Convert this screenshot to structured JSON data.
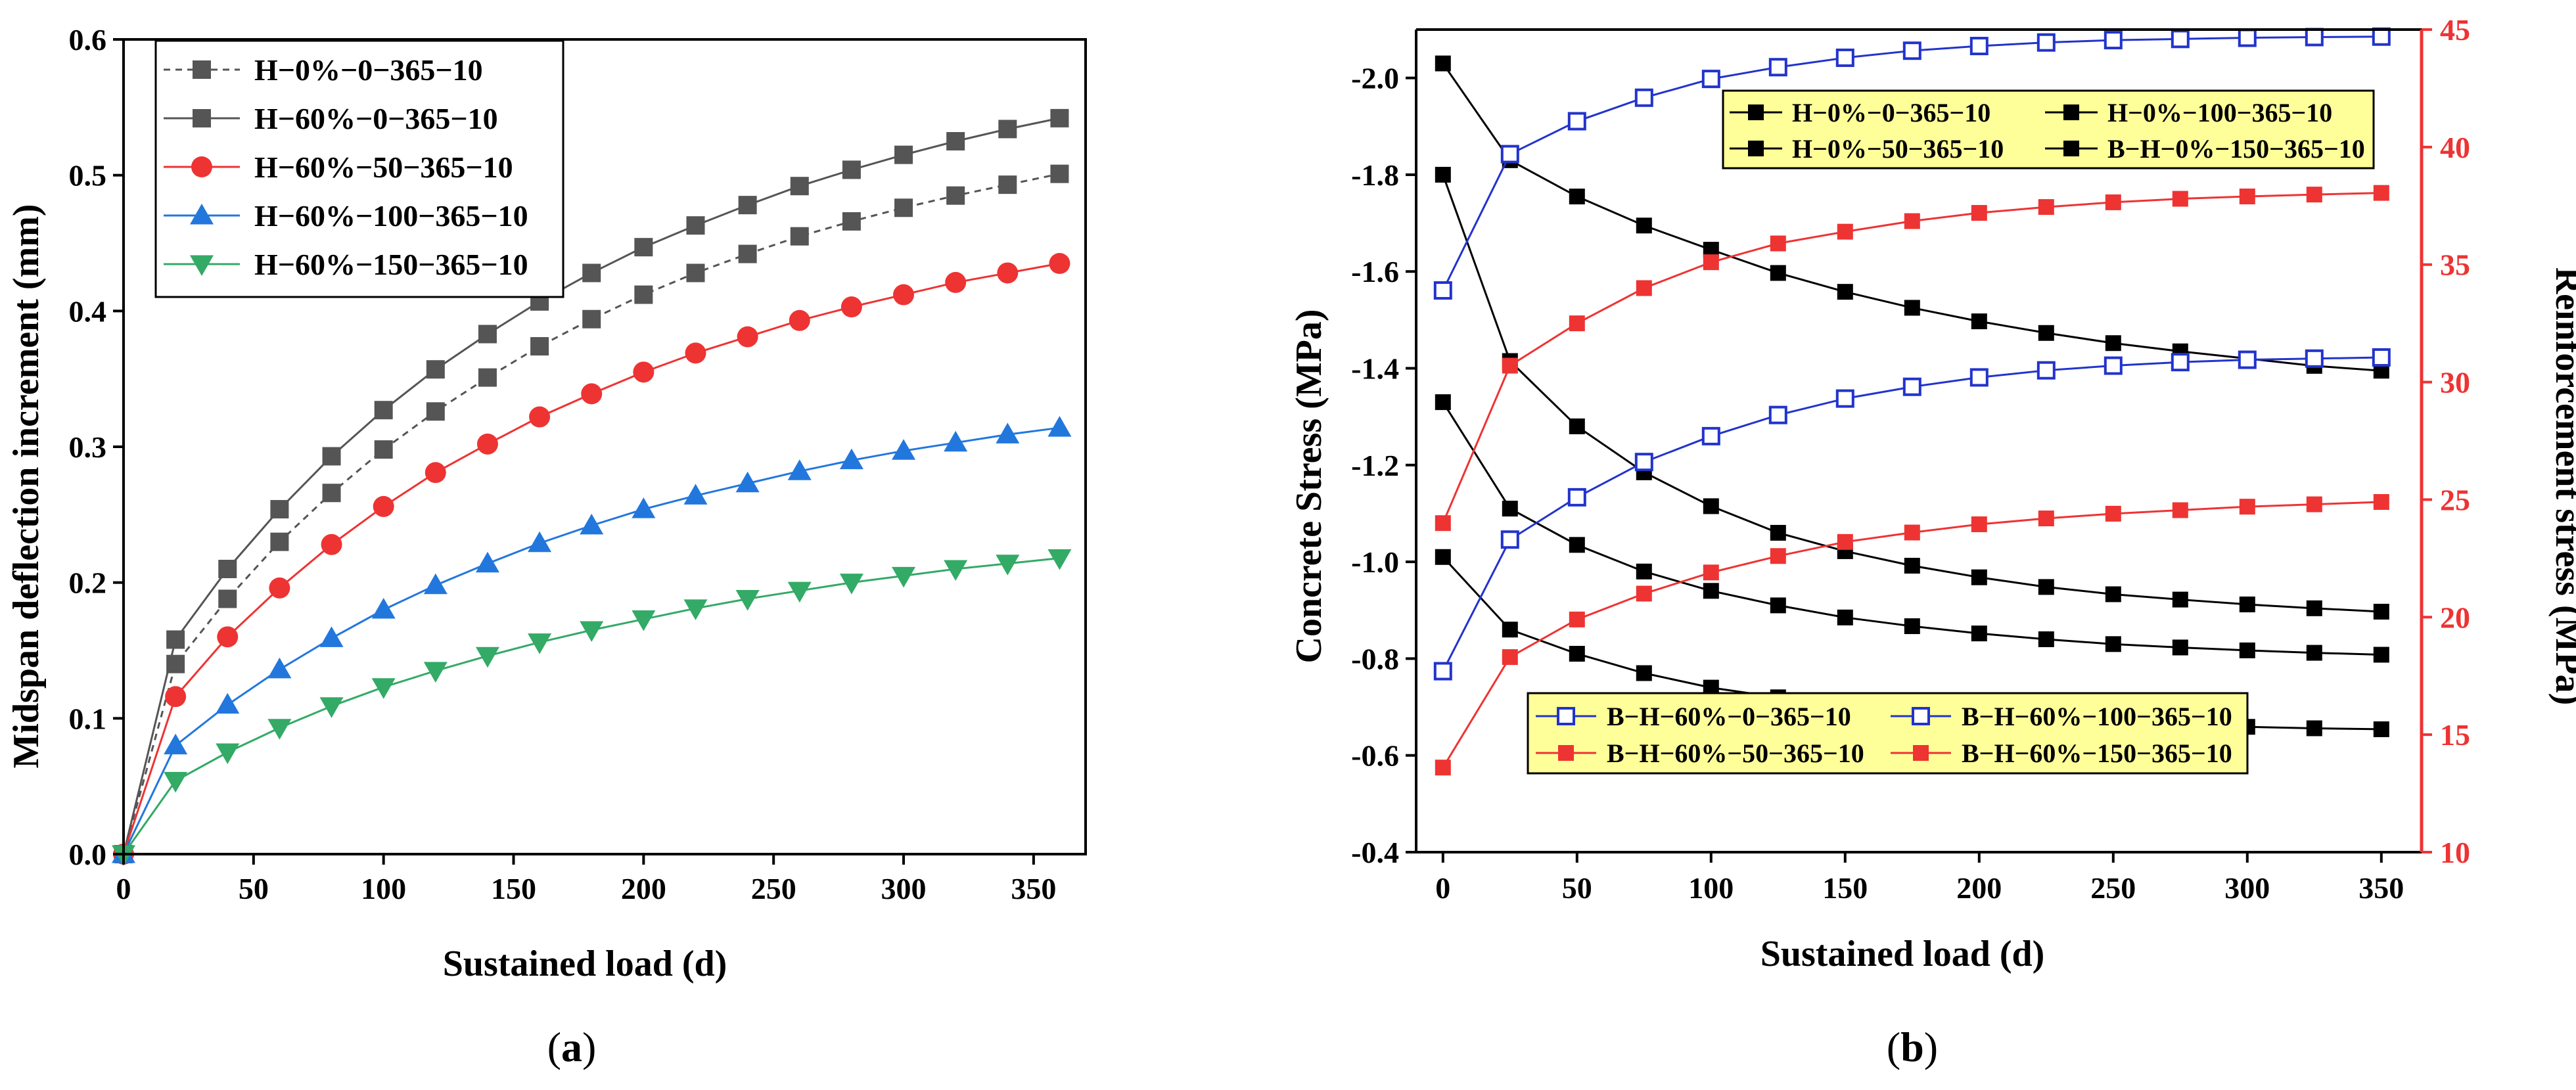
{
  "chart_data": [
    {
      "type": "line",
      "panel": "(a)",
      "panel_label_open": "(",
      "panel_label_letter": "a",
      "panel_label_close": ")",
      "xlabel": "Sustained load  (d)",
      "ylabel": "Midspan deflection increment  (mm)",
      "xlim": [
        0,
        370
      ],
      "ylim": [
        0,
        0.6
      ],
      "xticks": [
        0,
        50,
        100,
        150,
        200,
        250,
        300,
        350
      ],
      "yticks": [
        0.0,
        0.1,
        0.2,
        0.3,
        0.4,
        0.5,
        0.6
      ],
      "legend_position": "top-left",
      "series": [
        {
          "name": "H−0%−0−365−10",
          "color": "#555555",
          "marker": "square",
          "dashed": true,
          "x": [
            0,
            20,
            40,
            60,
            80,
            100,
            120,
            140,
            160,
            180,
            200,
            220,
            240,
            260,
            280,
            300,
            320,
            340,
            360
          ],
          "y": [
            0,
            0.14,
            0.188,
            0.23,
            0.266,
            0.298,
            0.326,
            0.351,
            0.374,
            0.394,
            0.412,
            0.428,
            0.442,
            0.455,
            0.466,
            0.476,
            0.485,
            0.493,
            0.501
          ]
        },
        {
          "name": "H−60%−0−365−10",
          "color": "#555555",
          "marker": "square",
          "dashed": false,
          "x": [
            0,
            20,
            40,
            60,
            80,
            100,
            120,
            140,
            160,
            180,
            200,
            220,
            240,
            260,
            280,
            300,
            320,
            340,
            360
          ],
          "y": [
            0,
            0.158,
            0.21,
            0.254,
            0.293,
            0.327,
            0.357,
            0.383,
            0.407,
            0.428,
            0.447,
            0.463,
            0.478,
            0.492,
            0.504,
            0.515,
            0.525,
            0.534,
            0.542
          ]
        },
        {
          "name": "H−60%−50−365−10",
          "color": "#ee3333",
          "marker": "circle",
          "dashed": false,
          "x": [
            0,
            20,
            40,
            60,
            80,
            100,
            120,
            140,
            160,
            180,
            200,
            220,
            240,
            260,
            280,
            300,
            320,
            340,
            360
          ],
          "y": [
            0,
            0.116,
            0.16,
            0.196,
            0.228,
            0.256,
            0.281,
            0.302,
            0.322,
            0.339,
            0.355,
            0.369,
            0.381,
            0.393,
            0.403,
            0.412,
            0.421,
            0.428,
            0.435
          ]
        },
        {
          "name": "H−60%−100−365−10",
          "color": "#2277dd",
          "marker": "triangle-up",
          "dashed": false,
          "x": [
            0,
            20,
            40,
            60,
            80,
            100,
            120,
            140,
            160,
            180,
            200,
            220,
            240,
            260,
            280,
            300,
            320,
            340,
            360
          ],
          "y": [
            0,
            0.08,
            0.11,
            0.136,
            0.159,
            0.18,
            0.198,
            0.214,
            0.229,
            0.242,
            0.254,
            0.264,
            0.273,
            0.282,
            0.29,
            0.297,
            0.303,
            0.309,
            0.314
          ]
        },
        {
          "name": "H−60%−150−365−10",
          "color": "#33aa66",
          "marker": "triangle-down",
          "dashed": false,
          "x": [
            0,
            20,
            40,
            60,
            80,
            100,
            120,
            140,
            160,
            180,
            200,
            220,
            240,
            260,
            280,
            300,
            320,
            340,
            360
          ],
          "y": [
            0,
            0.054,
            0.075,
            0.093,
            0.109,
            0.123,
            0.135,
            0.146,
            0.156,
            0.165,
            0.173,
            0.181,
            0.188,
            0.194,
            0.2,
            0.205,
            0.21,
            0.214,
            0.218
          ]
        }
      ]
    },
    {
      "type": "line",
      "panel": "(b)",
      "panel_label_open": "(",
      "panel_label_letter": "b",
      "panel_label_close": ")",
      "xlabel": "Sustained load  (d)",
      "ylabel": "Concrete Stress  (MPa)",
      "y2label": "Reinforcement stress  (MPa)",
      "xlim": [
        -10,
        365
      ],
      "ylim": [
        -0.4,
        -2.1
      ],
      "y2lim": [
        10,
        45
      ],
      "xticks": [
        0,
        50,
        100,
        150,
        200,
        250,
        300,
        350
      ],
      "yticks": [
        -0.4,
        -0.6,
        -0.8,
        -1.0,
        -1.2,
        -1.4,
        -1.6,
        -1.8,
        -2.0
      ],
      "ytick_labels": [
        "-0.4",
        "-0.6",
        "-0.8",
        "-1.0",
        "-1.2",
        "-1.4",
        "-1.6",
        "-1.8",
        "-2.0"
      ],
      "y2ticks": [
        10,
        15,
        20,
        25,
        30,
        35,
        40,
        45
      ],
      "colors": {
        "axis2": "#ee3333"
      },
      "legend_top": [
        "H−0%−0−365−10",
        "H−0%−100−365−10",
        "H−0%−50−365−10",
        "B−H−0%−150−365−10"
      ],
      "legend_bottom": [
        "B−H−60%−0−365−10",
        "B−H−60%−100−365−10",
        "B−H−60%−50−365−10",
        "B−H−60%−150−365−10"
      ],
      "series": [
        {
          "name": "H−0%−0−365−10",
          "axis": "left",
          "color": "#000000",
          "marker": "square",
          "x": [
            0,
            25,
            50,
            75,
            100,
            125,
            150,
            175,
            200,
            225,
            250,
            275,
            300,
            325,
            350
          ],
          "y": [
            -2.03,
            -1.83,
            -1.755,
            -1.695,
            -1.645,
            -1.597,
            -1.558,
            -1.525,
            -1.497,
            -1.473,
            -1.452,
            -1.435,
            -1.42,
            -1.405,
            -1.395
          ]
        },
        {
          "name": "H−0%−50−365−10",
          "axis": "left",
          "color": "#000000",
          "marker": "square",
          "x": [
            0,
            25,
            50,
            75,
            100,
            125,
            150,
            175,
            200,
            225,
            250,
            275,
            300,
            325,
            350
          ],
          "y": [
            -1.8,
            -1.415,
            -1.28,
            -1.185,
            -1.115,
            -1.06,
            -1.022,
            -0.992,
            -0.968,
            -0.948,
            -0.933,
            -0.922,
            -0.912,
            -0.904,
            -0.897
          ]
        },
        {
          "name": "H−0%−100−365−10",
          "axis": "left",
          "color": "#000000",
          "marker": "square",
          "x": [
            0,
            25,
            50,
            75,
            100,
            125,
            150,
            175,
            200,
            225,
            250,
            275,
            300,
            325,
            350
          ],
          "y": [
            -1.33,
            -1.11,
            -1.035,
            -0.98,
            -0.94,
            -0.91,
            -0.885,
            -0.867,
            -0.852,
            -0.84,
            -0.83,
            -0.823,
            -0.817,
            -0.812,
            -0.808
          ]
        },
        {
          "name": "B−H−0%−150−365−10",
          "axis": "left",
          "color": "#000000",
          "marker": "square",
          "x": [
            0,
            25,
            50,
            75,
            100,
            125,
            150,
            175,
            200,
            225,
            250,
            275,
            300,
            325,
            350
          ],
          "y": [
            -1.01,
            -0.86,
            -0.81,
            -0.77,
            -0.74,
            -0.72,
            -0.703,
            -0.69,
            -0.68,
            -0.673,
            -0.667,
            -0.662,
            -0.659,
            -0.656,
            -0.654
          ]
        },
        {
          "name": "B−H−60%−0−365−10",
          "axis": "right",
          "color": "#2233cc",
          "marker": "square-open",
          "x": [
            0,
            25,
            50,
            75,
            100,
            125,
            150,
            175,
            200,
            225,
            250,
            275,
            300,
            325,
            350
          ],
          "y": [
            33.9,
            39.7,
            41.1,
            42.1,
            42.9,
            43.4,
            43.8,
            44.1,
            44.3,
            44.45,
            44.55,
            44.6,
            44.65,
            44.68,
            44.7
          ]
        },
        {
          "name": "B−H−60%−100−365−10",
          "axis": "right",
          "color": "#2233cc",
          "marker": "square-open",
          "x": [
            0,
            25,
            50,
            75,
            100,
            125,
            150,
            175,
            200,
            225,
            250,
            275,
            300,
            325,
            350
          ],
          "y": [
            17.7,
            23.3,
            25.1,
            26.6,
            27.7,
            28.6,
            29.3,
            29.8,
            30.2,
            30.5,
            30.7,
            30.85,
            30.95,
            31.0,
            31.05
          ]
        },
        {
          "name": "B−H−60%−50−365−10",
          "axis": "right",
          "color": "#ee3333",
          "marker": "square",
          "x": [
            0,
            25,
            50,
            75,
            100,
            125,
            150,
            175,
            200,
            225,
            250,
            275,
            300,
            325,
            350
          ],
          "y": [
            24.0,
            30.7,
            32.5,
            34.0,
            35.1,
            35.9,
            36.4,
            36.85,
            37.2,
            37.45,
            37.65,
            37.8,
            37.9,
            37.98,
            38.05
          ]
        },
        {
          "name": "B−H−60%−150−365−10",
          "axis": "right",
          "color": "#ee3333",
          "marker": "square",
          "x": [
            0,
            25,
            50,
            75,
            100,
            125,
            150,
            175,
            200,
            225,
            250,
            275,
            300,
            325,
            350
          ],
          "y": [
            13.6,
            18.3,
            19.9,
            21.0,
            21.9,
            22.6,
            23.2,
            23.6,
            23.95,
            24.2,
            24.4,
            24.55,
            24.7,
            24.8,
            24.9
          ]
        }
      ]
    }
  ]
}
